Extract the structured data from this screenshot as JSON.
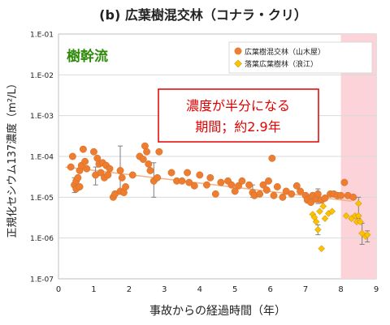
{
  "chart_data": {
    "type": "scatter",
    "title": "(b) 広葉樹混交林（コナラ・クリ）",
    "inner_label": "樹幹流",
    "xlabel": "事故からの経過時間（年）",
    "ylabel": "正規化セシウム137濃度（m²/L）",
    "xlim": [
      0,
      9
    ],
    "ylim_log10": [
      -7,
      -1
    ],
    "x_ticks": [
      "0",
      "1",
      "2",
      "3",
      "4",
      "5",
      "6",
      "7",
      "8",
      "9"
    ],
    "y_ticks": [
      "1.E-07",
      "1.E-06",
      "1.E-05",
      "1.E-04",
      "1.E-03",
      "1.E-02",
      "1.E-01"
    ],
    "legend_position": "top-right",
    "annotation": {
      "line1": "濃度が半分になる",
      "line2": "期間；約2.9年"
    },
    "highlight_region": {
      "x_start": 8.0,
      "x_end": 9.0,
      "color": "#fbd3d8"
    },
    "trendline": {
      "x": [
        0.2,
        8.3
      ],
      "y": [
        5.5e-05,
        8e-06
      ],
      "color": "#f4b183"
    },
    "series": [
      {
        "name": "広葉樹混交林（山木屋）",
        "marker": "circle",
        "color": "#ed7d31",
        "points": [
          {
            "x": 0.35,
            "y": 5.5e-05
          },
          {
            "x": 0.4,
            "y": 0.0001
          },
          {
            "x": 0.45,
            "y": 2e-05,
            "err": [
              1.3e-05,
              3e-05
            ]
          },
          {
            "x": 0.5,
            "y": 2.5e-05
          },
          {
            "x": 0.5,
            "y": 1.6e-05
          },
          {
            "x": 0.55,
            "y": 3e-05
          },
          {
            "x": 0.6,
            "y": 1.8e-05
          },
          {
            "x": 0.6,
            "y": 4.5e-05
          },
          {
            "x": 0.65,
            "y": 6e-05
          },
          {
            "x": 0.7,
            "y": 0.00015
          },
          {
            "x": 0.75,
            "y": 7.5e-05
          },
          {
            "x": 0.8,
            "y": 5e-05
          },
          {
            "x": 1.0,
            "y": 0.00013
          },
          {
            "x": 1.05,
            "y": 3.5e-05,
            "err": [
              2e-05,
              5.5e-05
            ]
          },
          {
            "x": 1.1,
            "y": 9e-05
          },
          {
            "x": 1.15,
            "y": 6.5e-05
          },
          {
            "x": 1.2,
            "y": 4e-05
          },
          {
            "x": 1.25,
            "y": 7e-05
          },
          {
            "x": 1.3,
            "y": 3e-05
          },
          {
            "x": 1.35,
            "y": 6e-05
          },
          {
            "x": 1.4,
            "y": 3.5e-05
          },
          {
            "x": 1.45,
            "y": 5e-05
          },
          {
            "x": 1.55,
            "y": 1e-05
          },
          {
            "x": 1.6,
            "y": 1.2e-05
          },
          {
            "x": 1.75,
            "y": 4.5e-05,
            "err": [
              1.2e-05,
              0.00018
            ]
          },
          {
            "x": 1.75,
            "y": 1.4e-05
          },
          {
            "x": 1.8,
            "y": 3e-05
          },
          {
            "x": 1.85,
            "y": 1.3e-05
          },
          {
            "x": 1.9,
            "y": 1.8e-05
          },
          {
            "x": 2.1,
            "y": 3.5e-05
          },
          {
            "x": 2.3,
            "y": 0.0001
          },
          {
            "x": 2.4,
            "y": 8.5e-05
          },
          {
            "x": 2.45,
            "y": 0.00018
          },
          {
            "x": 2.5,
            "y": 0.00013
          },
          {
            "x": 2.55,
            "y": 6.5e-05
          },
          {
            "x": 2.6,
            "y": 4.5e-05
          },
          {
            "x": 2.7,
            "y": 2.5e-05,
            "err": [
              1e-05,
              7e-05
            ]
          },
          {
            "x": 2.8,
            "y": 3e-05
          },
          {
            "x": 2.85,
            "y": 0.00013
          },
          {
            "x": 3.2,
            "y": 4e-05
          },
          {
            "x": 3.35,
            "y": 2.5e-05
          },
          {
            "x": 3.5,
            "y": 2.5e-05
          },
          {
            "x": 3.65,
            "y": 4e-05
          },
          {
            "x": 3.7,
            "y": 2.3e-05
          },
          {
            "x": 3.85,
            "y": 1.9e-05
          },
          {
            "x": 4.0,
            "y": 3.5e-05
          },
          {
            "x": 4.2,
            "y": 2e-05
          },
          {
            "x": 4.3,
            "y": 3e-05
          },
          {
            "x": 4.45,
            "y": 1.2e-05
          },
          {
            "x": 4.6,
            "y": 2.3e-05
          },
          {
            "x": 4.8,
            "y": 2.5e-05
          },
          {
            "x": 4.9,
            "y": 2e-05
          },
          {
            "x": 5.0,
            "y": 1.4e-05
          },
          {
            "x": 5.1,
            "y": 1.9e-05
          },
          {
            "x": 5.2,
            "y": 2.5e-05
          },
          {
            "x": 5.4,
            "y": 2e-05
          },
          {
            "x": 5.5,
            "y": 1.3e-05,
            "err": [
              1e-05,
              2e-05
            ]
          },
          {
            "x": 5.55,
            "y": 1.1e-05
          },
          {
            "x": 5.7,
            "y": 1.2e-05
          },
          {
            "x": 5.8,
            "y": 2e-05
          },
          {
            "x": 5.9,
            "y": 1.5e-05
          },
          {
            "x": 5.95,
            "y": 2.5e-05
          },
          {
            "x": 6.05,
            "y": 9e-05
          },
          {
            "x": 6.1,
            "y": 1.1e-05
          },
          {
            "x": 6.2,
            "y": 1.8e-05
          },
          {
            "x": 6.35,
            "y": 1e-05
          },
          {
            "x": 6.45,
            "y": 1.4e-05
          },
          {
            "x": 6.6,
            "y": 1.2e-05
          },
          {
            "x": 6.75,
            "y": 1.9e-05
          },
          {
            "x": 6.85,
            "y": 1.4e-05
          },
          {
            "x": 7.0,
            "y": 1.1e-05
          },
          {
            "x": 7.05,
            "y": 8.5e-06
          },
          {
            "x": 7.15,
            "y": 7.5e-06
          },
          {
            "x": 7.2,
            "y": 1.1e-05
          },
          {
            "x": 7.3,
            "y": 9e-06
          },
          {
            "x": 7.35,
            "y": 1.2e-05,
            "err": [
              7e-06,
              1.6e-05
            ]
          },
          {
            "x": 7.45,
            "y": 8.5e-06
          },
          {
            "x": 7.55,
            "y": 9.5e-06
          },
          {
            "x": 7.7,
            "y": 1.2e-05
          },
          {
            "x": 7.8,
            "y": 1.2e-05
          },
          {
            "x": 7.9,
            "y": 1.1e-05
          },
          {
            "x": 8.0,
            "y": 1.1e-05
          },
          {
            "x": 8.1,
            "y": 2.3e-05
          },
          {
            "x": 8.2,
            "y": 1.1e-05
          },
          {
            "x": 8.35,
            "y": 1e-05
          }
        ]
      },
      {
        "name": "落葉広葉樹林（浪江）",
        "marker": "diamond",
        "color": "#ffc000",
        "points": [
          {
            "x": 7.2,
            "y": 3.8e-06
          },
          {
            "x": 7.25,
            "y": 3.2e-06
          },
          {
            "x": 7.3,
            "y": 2.5e-06
          },
          {
            "x": 7.35,
            "y": 1.6e-06,
            "err": [
              1.2e-06,
              2.1e-06
            ]
          },
          {
            "x": 7.4,
            "y": 4.5e-06
          },
          {
            "x": 7.45,
            "y": 5.5e-07
          },
          {
            "x": 7.5,
            "y": 6e-06
          },
          {
            "x": 7.55,
            "y": 3e-06
          },
          {
            "x": 7.65,
            "y": 4e-06
          },
          {
            "x": 7.75,
            "y": 4.5e-06
          },
          {
            "x": 8.15,
            "y": 3.5e-06
          },
          {
            "x": 8.3,
            "y": 3e-06
          },
          {
            "x": 8.4,
            "y": 3.5e-06
          },
          {
            "x": 8.45,
            "y": 2.5e-06
          },
          {
            "x": 8.5,
            "y": 7e-06,
            "err": [
              3e-06,
              1e-05
            ]
          },
          {
            "x": 8.5,
            "y": 3.5e-06
          },
          {
            "x": 8.55,
            "y": 2.5e-06
          },
          {
            "x": 8.6,
            "y": 1.3e-06,
            "err": [
              7e-07,
              2.3e-06
            ]
          },
          {
            "x": 8.7,
            "y": 1.1e-06
          },
          {
            "x": 8.75,
            "y": 1.2e-06,
            "err": [
              8e-07,
              1.5e-06
            ]
          }
        ]
      }
    ]
  }
}
